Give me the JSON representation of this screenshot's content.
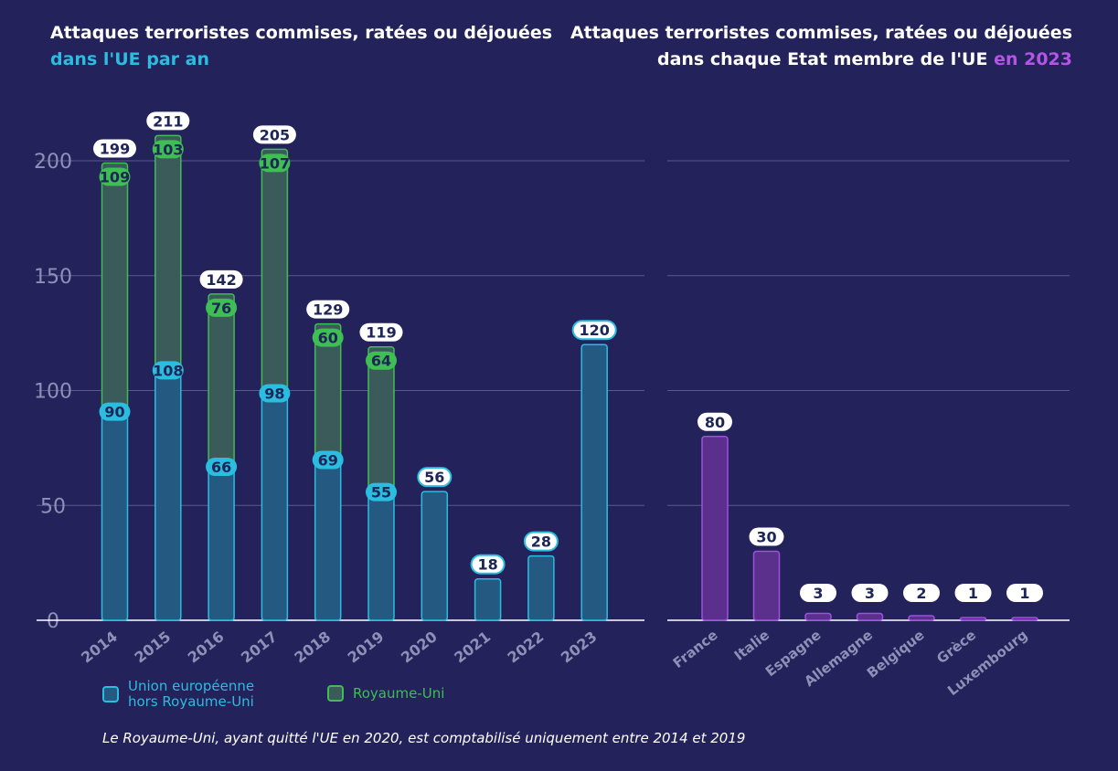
{
  "titles": {
    "left_main": "Attaques terroristes commises, ratées ou déjouées",
    "left_highlight": "dans l'UE par an",
    "right_main": "Attaques terroristes commises, ratées ou déjouées dans chaque Etat membre de l'UE",
    "right_highlight": "en 2023"
  },
  "legend": {
    "eu": "Union européenne hors Royaume-Uni",
    "uk": "Royaume-Uni"
  },
  "footnote": "Le Royaume-Uni, ayant quitté l'UE en 2020, est comptabilisé uniquement entre 2014 et 2019",
  "colors": {
    "background": "#23225a",
    "eu_fill": "#245a82",
    "eu_stroke": "#2bbde0",
    "uk_fill": "#3b5a5a",
    "uk_stroke": "#3ebe53",
    "state_fill": "#5b2f8c",
    "state_stroke": "#a14fe0",
    "grid": "#5a5a8a"
  },
  "chart_data": [
    {
      "type": "bar",
      "stacked": true,
      "title": "Attaques terroristes commises, ratées ou déjouées dans l'UE par an",
      "categories": [
        "2014",
        "2015",
        "2016",
        "2017",
        "2018",
        "2019",
        "2020",
        "2021",
        "2022",
        "2023"
      ],
      "series": [
        {
          "name": "Union européenne hors Royaume-Uni",
          "values": [
            90,
            108,
            66,
            98,
            69,
            55,
            56,
            18,
            28,
            120
          ]
        },
        {
          "name": "Royaume-Uni",
          "values": [
            109,
            103,
            76,
            107,
            60,
            64,
            null,
            null,
            null,
            null
          ]
        }
      ],
      "totals": [
        199,
        211,
        142,
        205,
        129,
        119,
        56,
        18,
        28,
        120
      ],
      "y_ticks": [
        0,
        50,
        100,
        150,
        200
      ],
      "ylim": [
        0,
        210
      ],
      "grid": true,
      "legend_position": "bottom-left"
    },
    {
      "type": "bar",
      "title": "Attaques terroristes commises, ratées ou déjouées dans chaque Etat membre de l'UE en 2023",
      "categories": [
        "France",
        "Italie",
        "Espagne",
        "Allemagne",
        "Belgique",
        "Grèce",
        "Luxembourg"
      ],
      "values": [
        80,
        30,
        3,
        3,
        2,
        1,
        1
      ],
      "ylim": [
        0,
        210
      ],
      "grid": true
    }
  ]
}
